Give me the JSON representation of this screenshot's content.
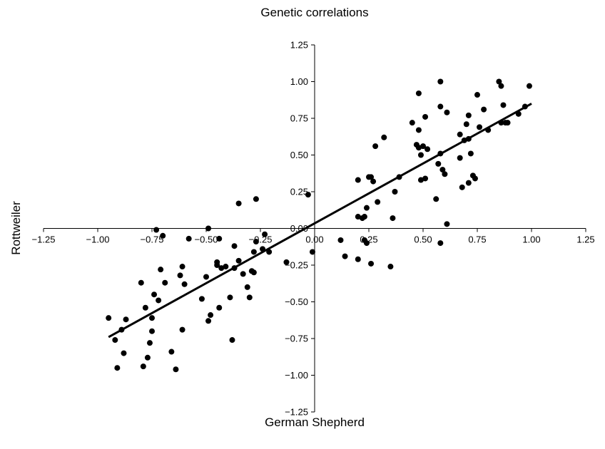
{
  "chart_data": {
    "type": "scatter",
    "title": "Genetic correlations",
    "xlabel": "German Shepherd",
    "ylabel": "Rottweiler",
    "xlim": [
      -1.25,
      1.25
    ],
    "ylim": [
      -1.25,
      1.25
    ],
    "x_ticks": [
      "−1.25",
      "−1.00",
      "−0.75",
      "−0.50",
      "−0.25",
      "0.00",
      "0.25",
      "0.50",
      "0.75",
      "1.00",
      "1.25"
    ],
    "y_ticks": [
      "1.25",
      "1.00",
      "0.75",
      "0.50",
      "0.25",
      "0.00",
      "−0.25",
      "−0.50",
      "−0.75",
      "−1.00",
      "−1.25"
    ],
    "grid": false,
    "axes_through_origin": true,
    "trendline": {
      "from": [
        -0.95,
        -0.74
      ],
      "to": [
        1.0,
        0.85
      ]
    },
    "points": [
      [
        -0.95,
        -0.61
      ],
      [
        -0.92,
        -0.76
      ],
      [
        -0.91,
        -0.95
      ],
      [
        -0.89,
        -0.69
      ],
      [
        -0.88,
        -0.85
      ],
      [
        -0.87,
        -0.62
      ],
      [
        -0.8,
        -0.37
      ],
      [
        -0.79,
        -0.94
      ],
      [
        -0.78,
        -0.54
      ],
      [
        -0.77,
        -0.88
      ],
      [
        -0.76,
        -0.78
      ],
      [
        -0.75,
        -0.7
      ],
      [
        -0.75,
        -0.61
      ],
      [
        -0.74,
        -0.45
      ],
      [
        -0.73,
        -0.01
      ],
      [
        -0.72,
        -0.49
      ],
      [
        -0.71,
        -0.28
      ],
      [
        -0.7,
        -0.05
      ],
      [
        -0.69,
        -0.37
      ],
      [
        -0.66,
        -0.84
      ],
      [
        -0.64,
        -0.96
      ],
      [
        -0.62,
        -0.32
      ],
      [
        -0.61,
        -0.69
      ],
      [
        -0.61,
        -0.26
      ],
      [
        -0.6,
        -0.38
      ],
      [
        -0.58,
        -0.07
      ],
      [
        -0.52,
        -0.48
      ],
      [
        -0.5,
        -0.33
      ],
      [
        -0.49,
        0.0
      ],
      [
        -0.49,
        -0.63
      ],
      [
        -0.48,
        -0.59
      ],
      [
        -0.45,
        -0.23
      ],
      [
        -0.45,
        -0.25
      ],
      [
        -0.44,
        -0.07
      ],
      [
        -0.44,
        -0.54
      ],
      [
        -0.43,
        -0.27
      ],
      [
        -0.41,
        -0.26
      ],
      [
        -0.39,
        -0.47
      ],
      [
        -0.38,
        -0.76
      ],
      [
        -0.37,
        -0.12
      ],
      [
        -0.37,
        -0.27
      ],
      [
        -0.35,
        -0.22
      ],
      [
        -0.35,
        0.17
      ],
      [
        -0.33,
        -0.31
      ],
      [
        -0.31,
        -0.4
      ],
      [
        -0.3,
        -0.47
      ],
      [
        -0.29,
        -0.29
      ],
      [
        -0.28,
        -0.3
      ],
      [
        -0.28,
        -0.16
      ],
      [
        -0.27,
        -0.09
      ],
      [
        -0.27,
        0.2
      ],
      [
        -0.24,
        -0.14
      ],
      [
        -0.23,
        -0.04
      ],
      [
        -0.21,
        -0.16
      ],
      [
        -0.13,
        -0.23
      ],
      [
        -0.03,
        0.23
      ],
      [
        -0.01,
        -0.16
      ],
      [
        0.12,
        -0.08
      ],
      [
        0.14,
        -0.19
      ],
      [
        0.2,
        0.33
      ],
      [
        0.2,
        0.08
      ],
      [
        0.2,
        -0.21
      ],
      [
        0.22,
        0.07
      ],
      [
        0.23,
        0.08
      ],
      [
        0.23,
        -0.08
      ],
      [
        0.24,
        -0.1
      ],
      [
        0.24,
        0.14
      ],
      [
        0.25,
        0.35
      ],
      [
        0.26,
        0.35
      ],
      [
        0.26,
        -0.24
      ],
      [
        0.27,
        0.32
      ],
      [
        0.28,
        0.56
      ],
      [
        0.29,
        0.18
      ],
      [
        0.32,
        0.62
      ],
      [
        0.35,
        -0.26
      ],
      [
        0.36,
        0.07
      ],
      [
        0.37,
        0.25
      ],
      [
        0.39,
        0.35
      ],
      [
        0.45,
        0.72
      ],
      [
        0.47,
        0.57
      ],
      [
        0.48,
        0.67
      ],
      [
        0.48,
        0.92
      ],
      [
        0.48,
        0.55
      ],
      [
        0.49,
        0.5
      ],
      [
        0.49,
        0.33
      ],
      [
        0.5,
        0.56
      ],
      [
        0.51,
        0.76
      ],
      [
        0.51,
        0.34
      ],
      [
        0.52,
        0.54
      ],
      [
        0.56,
        0.2
      ],
      [
        0.57,
        0.44
      ],
      [
        0.58,
        0.83
      ],
      [
        0.58,
        0.51
      ],
      [
        0.58,
        1.0
      ],
      [
        0.58,
        -0.1
      ],
      [
        0.59,
        0.4
      ],
      [
        0.6,
        0.37
      ],
      [
        0.61,
        0.79
      ],
      [
        0.61,
        0.03
      ],
      [
        0.67,
        0.64
      ],
      [
        0.67,
        0.48
      ],
      [
        0.68,
        0.28
      ],
      [
        0.69,
        0.6
      ],
      [
        0.7,
        0.71
      ],
      [
        0.71,
        0.61
      ],
      [
        0.71,
        0.77
      ],
      [
        0.71,
        0.31
      ],
      [
        0.72,
        0.51
      ],
      [
        0.73,
        0.36
      ],
      [
        0.74,
        0.34
      ],
      [
        0.75,
        0.91
      ],
      [
        0.76,
        0.69
      ],
      [
        0.78,
        0.81
      ],
      [
        0.8,
        0.67
      ],
      [
        0.85,
        1.0
      ],
      [
        0.86,
        0.97
      ],
      [
        0.86,
        0.72
      ],
      [
        0.87,
        0.84
      ],
      [
        0.88,
        0.72
      ],
      [
        0.89,
        0.72
      ],
      [
        0.94,
        0.78
      ],
      [
        0.97,
        0.83
      ],
      [
        0.99,
        0.97
      ]
    ]
  }
}
